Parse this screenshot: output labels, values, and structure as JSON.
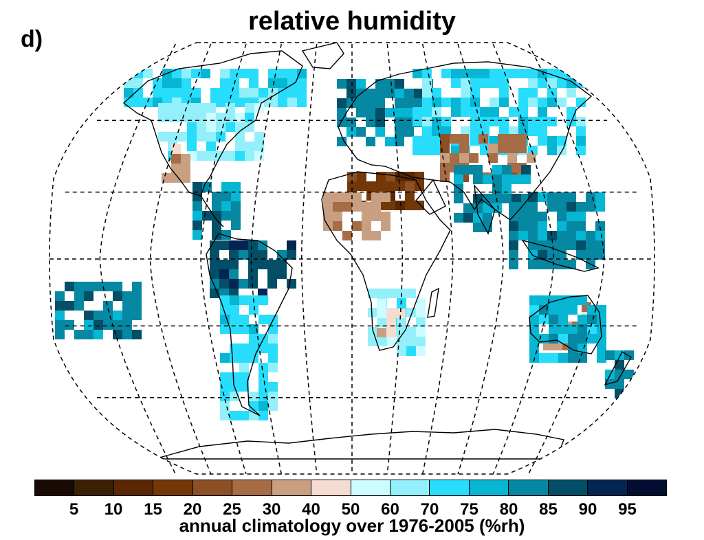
{
  "panel_label": "d)",
  "title": "relative humidity",
  "caption": "annual climatology over 1976-2005 (%rh)",
  "colorbar": {
    "colors": [
      "#1a0a05",
      "#3a2005",
      "#5a2705",
      "#723808",
      "#8b5025",
      "#a56c45",
      "#c99f82",
      "#f4ddd0",
      "#ccfcff",
      "#93f0fb",
      "#27ddfb",
      "#06b6d3",
      "#0687a2",
      "#024f67",
      "#022553",
      "#030e33"
    ],
    "tick_labels": [
      "5",
      "10",
      "15",
      "20",
      "25",
      "30",
      "40",
      "50",
      "60",
      "70",
      "75",
      "80",
      "85",
      "90",
      "95"
    ]
  },
  "legend_classes": [
    {
      "range": "<5",
      "color": "#1a0a05"
    },
    {
      "range": "5-10",
      "color": "#3a2005"
    },
    {
      "range": "10-15",
      "color": "#5a2705"
    },
    {
      "range": "15-20",
      "color": "#723808"
    },
    {
      "range": "20-25",
      "color": "#8b5025"
    },
    {
      "range": "25-30",
      "color": "#a56c45"
    },
    {
      "range": "30-40",
      "color": "#c99f82"
    },
    {
      "range": "40-50",
      "color": "#f4ddd0"
    },
    {
      "range": "50-60",
      "color": "#ccfcff"
    },
    {
      "range": "60-70",
      "color": "#93f0fb"
    },
    {
      "range": "70-75",
      "color": "#27ddfb"
    },
    {
      "range": "75-80",
      "color": "#06b6d3"
    },
    {
      "range": "80-85",
      "color": "#0687a2"
    },
    {
      "range": "85-90",
      "color": "#024f67"
    },
    {
      "range": "90-95",
      "color": "#022553"
    },
    {
      "range": ">95",
      "color": "#030e33"
    }
  ],
  "map": {
    "projection": "robinson",
    "graticule": "dashed",
    "grid_cells": [
      {
        "region": "north-america-high",
        "class": 10
      },
      {
        "region": "north-america-mid",
        "class": 9
      },
      {
        "region": "southwest-us",
        "class": 6
      },
      {
        "region": "central-america",
        "class": 12
      },
      {
        "region": "northern-europe",
        "class": 12
      },
      {
        "region": "russia",
        "class": 10
      },
      {
        "region": "central-asia-desert",
        "class": 5
      },
      {
        "region": "sahara",
        "class": 3
      },
      {
        "region": "sahel",
        "class": 6
      },
      {
        "region": "south-asia",
        "class": 12
      },
      {
        "region": "southeast-asia",
        "class": 12
      },
      {
        "region": "amazon",
        "class": 13
      },
      {
        "region": "south-america-south",
        "class": 10
      },
      {
        "region": "southern-africa",
        "class": 9
      },
      {
        "region": "kalahari",
        "class": 7
      },
      {
        "region": "australia-interior",
        "class": 6
      },
      {
        "region": "australia-coast",
        "class": 11
      },
      {
        "region": "new-zealand",
        "class": 12
      },
      {
        "region": "pacific-islands",
        "class": 12
      }
    ]
  }
}
